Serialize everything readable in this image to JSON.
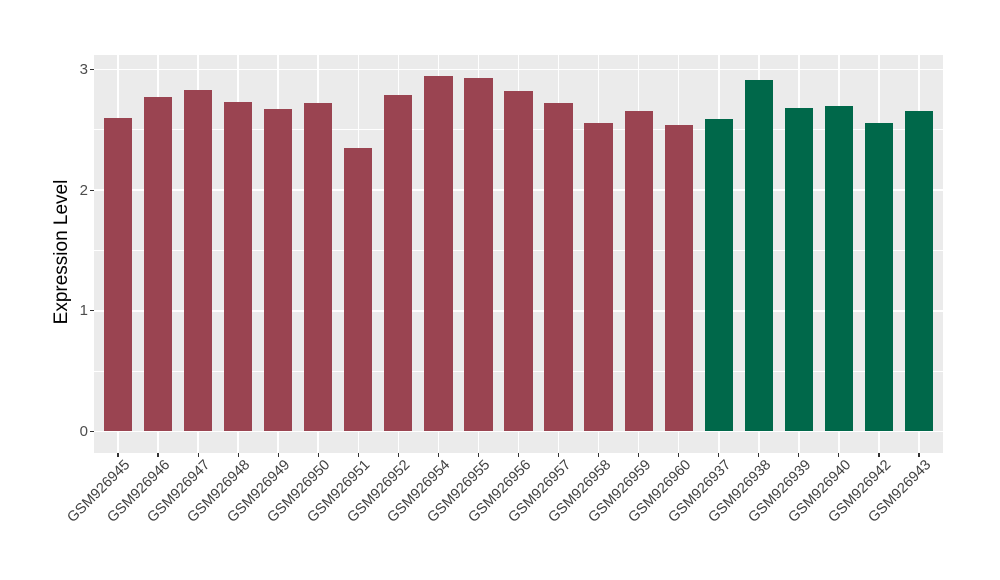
{
  "chart_data": {
    "type": "bar",
    "title": "",
    "xlabel": "",
    "ylabel": "Expression Level",
    "ylim": [
      0,
      3
    ],
    "yticks": [
      0,
      1,
      2,
      3
    ],
    "ytick_labels": [
      "0",
      "1",
      "2",
      "3"
    ],
    "minor_ticks": [
      0.5,
      1.5,
      2.5
    ],
    "grid": "major-and-minor, white on gray panel",
    "legend_position": "none",
    "categories": [
      "GSM926945",
      "GSM926946",
      "GSM926947",
      "GSM926948",
      "GSM926949",
      "GSM926950",
      "GSM926951",
      "GSM926952",
      "GSM926954",
      "GSM926955",
      "GSM926956",
      "GSM926957",
      "GSM926958",
      "GSM926959",
      "GSM926960",
      "GSM926937",
      "GSM926938",
      "GSM926939",
      "GSM926940",
      "GSM926942",
      "GSM926943"
    ],
    "values": [
      2.6,
      2.77,
      2.83,
      2.73,
      2.67,
      2.72,
      2.35,
      2.79,
      2.95,
      2.93,
      2.82,
      2.72,
      2.56,
      2.66,
      2.54,
      2.59,
      2.91,
      2.68,
      2.7,
      2.56,
      2.66
    ],
    "groups": [
      "red",
      "red",
      "red",
      "red",
      "red",
      "red",
      "red",
      "red",
      "red",
      "red",
      "red",
      "red",
      "red",
      "red",
      "red",
      "green",
      "green",
      "green",
      "green",
      "green",
      "green"
    ],
    "group_colors": {
      "red": "#9A4451",
      "green": "#00684A"
    }
  },
  "style": {
    "background": "#FFFFFF",
    "panel_bg": "#EBEBEB",
    "grid_color": "#FFFFFF",
    "tick_color": "#333333",
    "axis_text_color": "#4D4D4D",
    "x_label_color": "#404040",
    "title_color": "#000000"
  }
}
